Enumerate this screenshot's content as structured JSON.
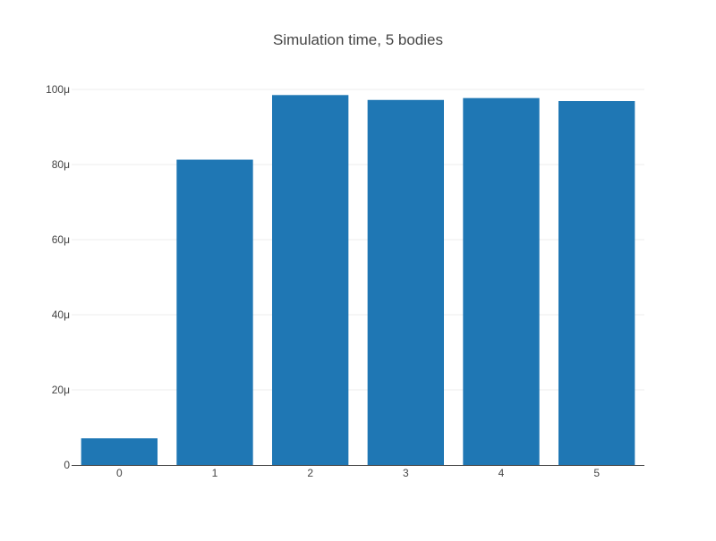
{
  "chart_data": {
    "type": "bar",
    "title": "Simulation time, 5 bodies",
    "xlabel": "",
    "ylabel": "",
    "categories": [
      "0",
      "1",
      "2",
      "3",
      "4",
      "5"
    ],
    "values": [
      7.1e-06,
      8.13e-05,
      9.85e-05,
      9.72e-05,
      9.77e-05,
      9.69e-05
    ],
    "ylim": [
      0,
      0.0001
    ],
    "y_ticks": [
      {
        "value": 0,
        "label": "0"
      },
      {
        "value": 2e-05,
        "label": "20μ"
      },
      {
        "value": 4e-05,
        "label": "40μ"
      },
      {
        "value": 6e-05,
        "label": "60μ"
      },
      {
        "value": 8e-05,
        "label": "80μ"
      },
      {
        "value": 0.0001,
        "label": "100μ"
      }
    ],
    "grid": true,
    "legend": "none",
    "bar_color": "#1f77b4"
  }
}
